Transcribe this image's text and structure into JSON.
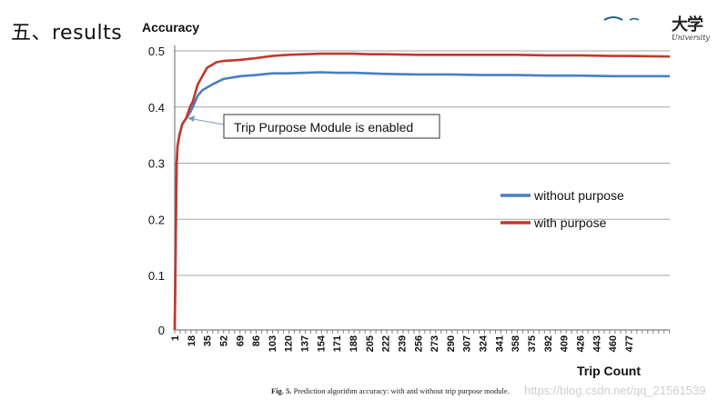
{
  "slide": {
    "title": "五、results"
  },
  "logo": {
    "cn": "大学",
    "en": "University"
  },
  "caption": {
    "label": "Fig. 5.",
    "text": "Prediction algorithm accuracy: with and without trip purpose module."
  },
  "watermark": "https://blog.csdn.net/qq_21561539",
  "colors": {
    "without": "#4a7ec4",
    "with": "#c0392b"
  },
  "chart_data": {
    "type": "line",
    "title": "",
    "xlabel": "Trip Count",
    "ylabel": "Accuracy",
    "ylim": [
      0,
      0.5
    ],
    "xlim": [
      1,
      520
    ],
    "grid": true,
    "legend_position": "right",
    "y_ticks": [
      0,
      0.1,
      0.2,
      0.3,
      0.4,
      0.5
    ],
    "x_ticks": [
      "1",
      "18",
      "35",
      "52",
      "69",
      "86",
      "103",
      "120",
      "137",
      "154",
      "171",
      "188",
      "205",
      "222",
      "239",
      "256",
      "273",
      "290",
      "307",
      "324",
      "341",
      "358",
      "375",
      "392",
      "409",
      "426",
      "443",
      "460",
      "477"
    ],
    "annotation": {
      "text": "Trip Purpose Module is enabled",
      "x": 13,
      "y": 0.37
    },
    "series": [
      {
        "name": "without purpose",
        "color": "#4a7ec4",
        "points": [
          [
            1,
            0.0
          ],
          [
            2,
            0.15
          ],
          [
            3,
            0.3
          ],
          [
            4,
            0.33
          ],
          [
            6,
            0.35
          ],
          [
            9,
            0.37
          ],
          [
            13,
            0.38
          ],
          [
            17,
            0.39
          ],
          [
            20,
            0.4
          ],
          [
            25,
            0.42
          ],
          [
            30,
            0.43
          ],
          [
            40,
            0.44
          ],
          [
            52,
            0.45
          ],
          [
            70,
            0.455
          ],
          [
            86,
            0.457
          ],
          [
            103,
            0.46
          ],
          [
            120,
            0.46
          ],
          [
            137,
            0.461
          ],
          [
            154,
            0.462
          ],
          [
            171,
            0.461
          ],
          [
            188,
            0.461
          ],
          [
            205,
            0.46
          ],
          [
            222,
            0.459
          ],
          [
            256,
            0.458
          ],
          [
            290,
            0.458
          ],
          [
            324,
            0.457
          ],
          [
            358,
            0.457
          ],
          [
            392,
            0.456
          ],
          [
            426,
            0.456
          ],
          [
            460,
            0.455
          ],
          [
            477,
            0.455
          ],
          [
            520,
            0.455
          ]
        ]
      },
      {
        "name": "with purpose",
        "color": "#c0392b",
        "points": [
          [
            1,
            0.0
          ],
          [
            2,
            0.15
          ],
          [
            3,
            0.3
          ],
          [
            4,
            0.33
          ],
          [
            6,
            0.35
          ],
          [
            9,
            0.37
          ],
          [
            13,
            0.38
          ],
          [
            17,
            0.4
          ],
          [
            20,
            0.41
          ],
          [
            25,
            0.44
          ],
          [
            30,
            0.455
          ],
          [
            35,
            0.47
          ],
          [
            45,
            0.48
          ],
          [
            52,
            0.482
          ],
          [
            69,
            0.484
          ],
          [
            86,
            0.487
          ],
          [
            103,
            0.491
          ],
          [
            120,
            0.493
          ],
          [
            137,
            0.494
          ],
          [
            154,
            0.495
          ],
          [
            171,
            0.495
          ],
          [
            188,
            0.495
          ],
          [
            205,
            0.494
          ],
          [
            222,
            0.494
          ],
          [
            256,
            0.493
          ],
          [
            290,
            0.493
          ],
          [
            324,
            0.493
          ],
          [
            358,
            0.493
          ],
          [
            392,
            0.492
          ],
          [
            426,
            0.492
          ],
          [
            460,
            0.491
          ],
          [
            477,
            0.491
          ],
          [
            520,
            0.49
          ]
        ]
      }
    ]
  }
}
